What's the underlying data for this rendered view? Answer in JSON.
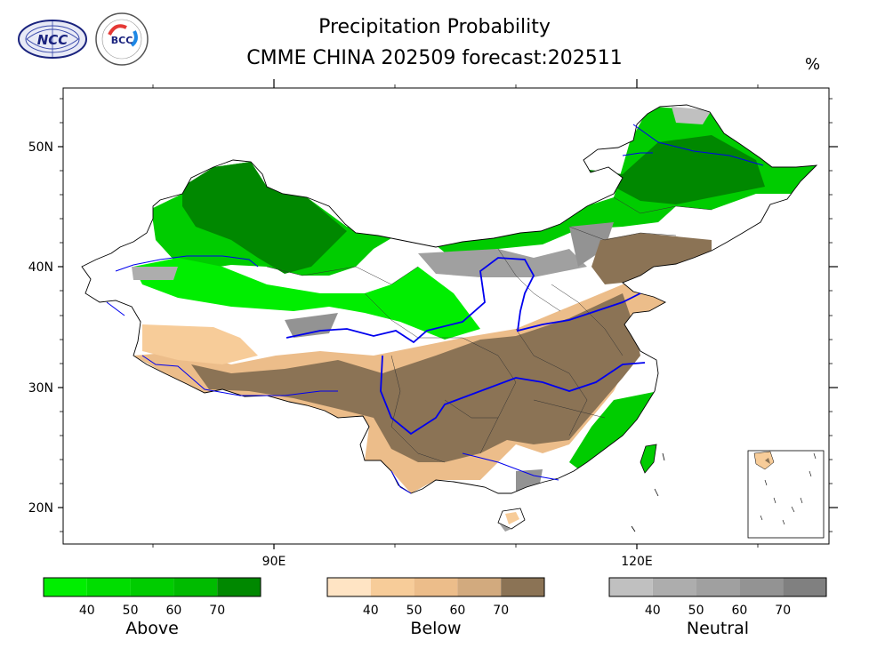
{
  "header": {
    "title_line1": "Precipitation Probability",
    "title_line2": "CMME CHINA 202509 forecast:202511",
    "unit": "%"
  },
  "logos": [
    {
      "name": "NCC",
      "text": "NCC",
      "color": "#1a237e"
    },
    {
      "name": "BCC",
      "text": "BCC",
      "color": "#1a237e"
    }
  ],
  "axes": {
    "y_labels": [
      "50N",
      "40N",
      "30N",
      "20N"
    ],
    "x_labels": [
      "90E",
      "120E"
    ]
  },
  "colorbars": [
    {
      "name": "above",
      "title": "Above",
      "colors": [
        "#00ee00",
        "#00dd00",
        "#00cc00",
        "#00bb00",
        "#008800"
      ],
      "ticks": [
        "40",
        "50",
        "60",
        "70"
      ]
    },
    {
      "name": "below",
      "title": "Below",
      "colors": [
        "#ffe4c4",
        "#f7cc99",
        "#ecbd8a",
        "#d2aa7e",
        "#8b7355"
      ],
      "ticks": [
        "40",
        "50",
        "60",
        "70"
      ]
    },
    {
      "name": "neutral",
      "title": "Neutral",
      "colors": [
        "#c0c0c0",
        "#adadad",
        "#a0a0a0",
        "#939393",
        "#808080"
      ],
      "ticks": [
        "40",
        "50",
        "60",
        "70"
      ]
    }
  ],
  "colors": {
    "river": "#0000ee",
    "border": "#000000"
  }
}
